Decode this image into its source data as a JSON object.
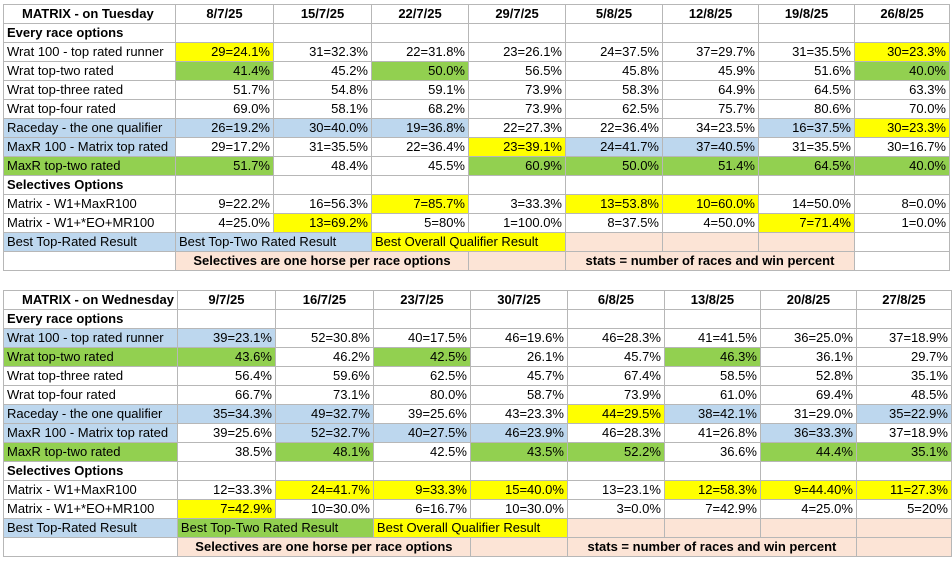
{
  "tables": [
    {
      "title": "MATRIX - on Tuesday",
      "dates": [
        "8/7/25",
        "15/7/25",
        "22/7/25",
        "29/7/25",
        "5/8/25",
        "12/8/25",
        "19/8/25",
        "26/8/25"
      ],
      "section1": "Every race options",
      "rows1": [
        {
          "label": "Wrat 100 - top rated runner",
          "values": [
            "29=24.1%",
            "31=32.3%",
            "22=31.8%",
            "23=26.1%",
            "24=37.5%",
            "37=29.7%",
            "31=35.5%",
            "30=23.3%"
          ]
        },
        {
          "label": "Wrat top-two rated",
          "values": [
            "41.4%",
            "45.2%",
            "50.0%",
            "56.5%",
            "45.8%",
            "45.9%",
            "51.6%",
            "40.0%"
          ]
        },
        {
          "label": "Wrat top-three rated",
          "values": [
            "51.7%",
            "54.8%",
            "59.1%",
            "73.9%",
            "58.3%",
            "64.9%",
            "64.5%",
            "63.3%"
          ]
        },
        {
          "label": "Wrat top-four rated",
          "values": [
            "69.0%",
            "58.1%",
            "68.2%",
            "73.9%",
            "62.5%",
            "75.7%",
            "80.6%",
            "70.0%"
          ]
        },
        {
          "label": "Raceday - the one qualifier",
          "values": [
            "26=19.2%",
            "30=40.0%",
            "19=36.8%",
            "22=27.3%",
            "22=36.4%",
            "34=23.5%",
            "16=37.5%",
            "30=23.3%"
          ]
        },
        {
          "label": "MaxR 100 - Matrix top rated",
          "values": [
            "29=17.2%",
            "31=35.5%",
            "22=36.4%",
            "23=39.1%",
            "24=41.7%",
            "37=40.5%",
            "31=35.5%",
            "30=16.7%"
          ]
        },
        {
          "label": "MaxR top-two rated",
          "values": [
            "51.7%",
            "48.4%",
            "45.5%",
            "60.9%",
            "50.0%",
            "51.4%",
            "64.5%",
            "40.0%"
          ]
        }
      ],
      "section2": "Selectives Options",
      "rows2": [
        {
          "label": "Matrix - W1+MaxR100",
          "values": [
            "9=22.2%",
            "16=56.3%",
            "7=85.7%",
            "3=33.3%",
            "13=53.8%",
            "10=60.0%",
            "14=50.0%",
            "8=0.0%"
          ]
        },
        {
          "label": "Matrix - W1+*EO+MR100",
          "values": [
            "4=25.0%",
            "13=69.2%",
            "5=80%",
            "1=100.0%",
            "8=37.5%",
            "4=50.0%",
            "7=71.4%",
            "1=0.0%"
          ]
        }
      ],
      "legend": {
        "best_top_rated": "Best Top-Rated Result",
        "best_top_two": "Best Top-Two Rated Result",
        "best_overall": "Best Overall Qualifier Result"
      },
      "notes": {
        "selectives": "Selectives are one horse per race options",
        "stats": "stats = number of races and win percent"
      }
    },
    {
      "title": "MATRIX - on Wednesday",
      "dates": [
        "9/7/25",
        "16/7/25",
        "23/7/25",
        "30/7/25",
        "6/8/25",
        "13/8/25",
        "20/8/25",
        "27/8/25"
      ],
      "section1": "Every race options",
      "rows1": [
        {
          "label": "Wrat 100 - top rated runner",
          "values": [
            "39=23.1%",
            "52=30.8%",
            "40=17.5%",
            "46=19.6%",
            "46=28.3%",
            "41=41.5%",
            "36=25.0%",
            "37=18.9%"
          ]
        },
        {
          "label": "Wrat top-two rated",
          "values": [
            "43.6%",
            "46.2%",
            "42.5%",
            "26.1%",
            "45.7%",
            "46.3%",
            "36.1%",
            "29.7%"
          ]
        },
        {
          "label": "Wrat top-three rated",
          "values": [
            "56.4%",
            "59.6%",
            "62.5%",
            "45.7%",
            "67.4%",
            "58.5%",
            "52.8%",
            "35.1%"
          ]
        },
        {
          "label": "Wrat top-four rated",
          "values": [
            "66.7%",
            "73.1%",
            "80.0%",
            "58.7%",
            "73.9%",
            "61.0%",
            "69.4%",
            "48.5%"
          ]
        },
        {
          "label": "Raceday - the one qualifier",
          "values": [
            "35=34.3%",
            "49=32.7%",
            "39=25.6%",
            "43=23.3%",
            "44=29.5%",
            "38=42.1%",
            "31=29.0%",
            "35=22.9%"
          ]
        },
        {
          "label": "MaxR 100 - Matrix top rated",
          "values": [
            "39=25.6%",
            "52=32.7%",
            "40=27.5%",
            "46=23.9%",
            "46=28.3%",
            "41=26.8%",
            "36=33.3%",
            "37=18.9%"
          ]
        },
        {
          "label": "MaxR top-two rated",
          "values": [
            "38.5%",
            "48.1%",
            "42.5%",
            "43.5%",
            "52.2%",
            "36.6%",
            "44.4%",
            "35.1%"
          ]
        }
      ],
      "section2": "Selectives Options",
      "rows2": [
        {
          "label": "Matrix - W1+MaxR100",
          "values": [
            "12=33.3%",
            "24=41.7%",
            "9=33.3%",
            "15=40.0%",
            "13=23.1%",
            "12=58.3%",
            "9=44.40%",
            "11=27.3%"
          ]
        },
        {
          "label": "Matrix - W1+*EO+MR100",
          "values": [
            "7=42.9%",
            "10=30.0%",
            "6=16.7%",
            "10=30.0%",
            "3=0.0%",
            "7=42.9%",
            "4=25.0%",
            "5=20%"
          ]
        }
      ],
      "legend": {
        "best_top_rated": "Best Top-Rated Result",
        "best_top_two": "Best Top-Two Rated Result",
        "best_overall": "Best Overall Qualifier Result"
      },
      "notes": {
        "selectives": "Selectives are one horse per race options",
        "stats": "stats = number of races and win percent"
      }
    }
  ],
  "highlight_colors": {
    "best_top_rated": "#bdd7ee",
    "best_top_two": "#92d050",
    "best_overall": "#ffff00",
    "note_background": "#fce4d6",
    "section_text": "#ff0000"
  },
  "highlights": [
    {
      "rows1": [
        [
          "y",
          "",
          "",
          "",
          "",
          "",
          "",
          "y"
        ],
        [
          "g",
          "",
          "g",
          "",
          "",
          "",
          "",
          "g"
        ],
        [
          "",
          "",
          "",
          "",
          "",
          "",
          "",
          ""
        ],
        [
          "",
          "",
          "",
          "",
          "",
          "",
          "",
          ""
        ],
        [
          "b",
          "b",
          "b",
          "",
          "",
          "",
          "b",
          "y"
        ],
        [
          "",
          "",
          "",
          "y",
          "b",
          "b",
          "",
          ""
        ],
        [
          "g",
          "",
          "",
          "g",
          "g",
          "g",
          "g",
          "g"
        ]
      ],
      "rows2": [
        [
          "",
          "",
          "y",
          "",
          "y",
          "y",
          "",
          ""
        ],
        [
          "",
          "y",
          "",
          "",
          "",
          "",
          "y",
          ""
        ]
      ]
    },
    {
      "rows1": [
        [
          "b",
          "",
          "",
          "",
          "",
          "",
          "",
          ""
        ],
        [
          "g",
          "",
          "g",
          "",
          "",
          "g",
          "",
          ""
        ],
        [
          "",
          "",
          "",
          "",
          "",
          "",
          "",
          ""
        ],
        [
          "",
          "",
          "",
          "",
          "",
          "",
          "",
          ""
        ],
        [
          "b",
          "b",
          "",
          "",
          "y",
          "b",
          "",
          "b"
        ],
        [
          "",
          "b",
          "b",
          "b",
          "",
          "",
          "b",
          ""
        ],
        [
          "",
          "g",
          "",
          "g",
          "g",
          "",
          "g",
          "g"
        ]
      ],
      "rows2": [
        [
          "",
          "y",
          "y",
          "y",
          "",
          "y",
          "y",
          "y"
        ],
        [
          "y",
          "",
          "",
          "",
          "",
          "",
          "",
          ""
        ]
      ]
    }
  ]
}
